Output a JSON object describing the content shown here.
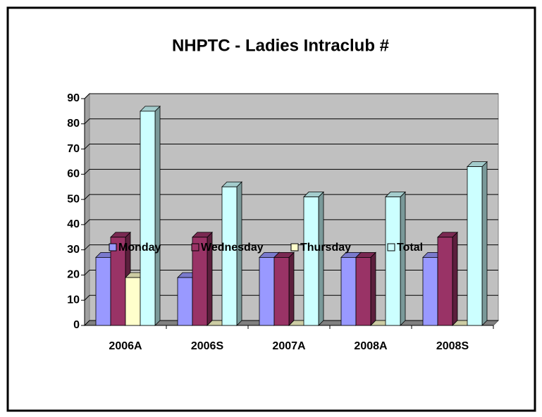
{
  "chart_data": {
    "type": "bar3d",
    "title": "NHPTC - Ladies Intraclub #",
    "categories": [
      "2006A",
      "2006S",
      "2007A",
      "2008A",
      "2008S"
    ],
    "series": [
      {
        "name": "Monday",
        "color": "#9999ff",
        "values": [
          27,
          19,
          27,
          27,
          27
        ]
      },
      {
        "name": "Wednesday",
        "color": "#993366",
        "values": [
          35,
          35,
          27,
          27,
          35
        ]
      },
      {
        "name": "Thursday",
        "color": "#ffffcc",
        "values": [
          19,
          0,
          0,
          0,
          0
        ]
      },
      {
        "name": "Total",
        "color": "#ccffff",
        "values": [
          85,
          55,
          51,
          51,
          63
        ]
      }
    ],
    "ylim": [
      0,
      90
    ],
    "yticks": [
      0,
      10,
      20,
      30,
      40,
      50,
      60,
      70,
      80,
      90
    ],
    "grid": true,
    "legend": "bottom"
  }
}
